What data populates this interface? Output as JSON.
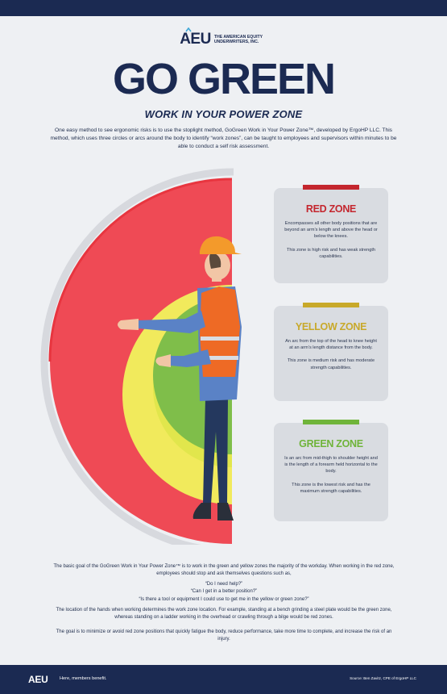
{
  "header": {
    "logo_mark": "AEU",
    "logo_text": "THE AMERICAN EQUITY UNDERWRITERS, INC.",
    "title": "GO GREEN",
    "subtitle": "WORK IN YOUR POWER ZONE",
    "intro": "One easy method to see ergonomic risks is to use the stoplight method, GoGreen Work in Your Power Zone™, developed by ErgoHP LLC. This method, which uses three circles or arcs around the body to identify “work zones”, can be taught to employees and supervisors within minutes to be able to conduct a self risk assessment."
  },
  "colors": {
    "navy": "#1b2a52",
    "red": "#c4262e",
    "yellow": "#c8a92a",
    "green": "#6fb43a"
  },
  "zones": [
    {
      "title": "RED ZONE",
      "desc": "Encompasses all other body positions that are beyond an arm’s length and above the head or below the knees.",
      "risk": "This zone is high risk and has weak strength capabilities."
    },
    {
      "title": "YELLOW ZONE",
      "desc": "An arc from the top of the head to knee height at an arm’s length distance from the body.",
      "risk": "This zone is medium risk and has moderate strength capabilities."
    },
    {
      "title": "GREEN ZONE",
      "desc": "Is an arc from mid-thigh to shoulder height and is the length of a forearm held horizontal to the body.",
      "risk": "This zone is the lowest risk and has the maximum strength capabilities."
    }
  ],
  "body": {
    "p1": "The basic goal of the GoGreen Work in Your Power Zone™ is to work in the green and yellow zones the majority of the workday. When working in the red zone, employees should stop and ask themselves questions such as,",
    "q1": "“Do I need help?”",
    "q2": "“Can I get in a better position?”",
    "q3": "“Is there a tool or equipment I could use to get me in the yellow or green zone?”",
    "p2": "The location of the hands when working determines the work zone location. For example, standing at a bench grinding a steel plate would be the green zone, whereas standing on a ladder working in the overhead or crawling through a bilge would be red zones.",
    "p3": "The goal is to minimize or avoid red zone positions that quickly fatigue the body, reduce performance, take more time to complete, and increase the risk of an injury."
  },
  "footer": {
    "logo": "AEU",
    "tagline": "Here, members benefit.",
    "source": "Source: Ben Zavitz, CPE of ErgoHP LLC"
  }
}
